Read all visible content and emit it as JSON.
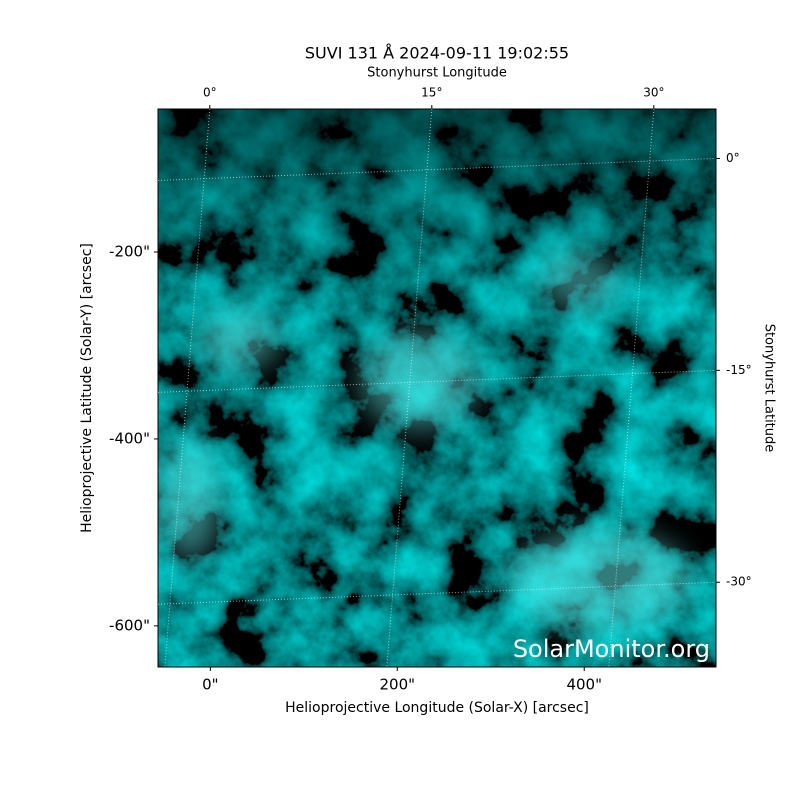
{
  "chart_data": {
    "type": "image",
    "title": "SUVI 131 Å 2024-09-11 19:02:55",
    "xlabel": "Helioprojective Longitude (Solar-X) [arcsec]",
    "ylabel": "Helioprojective Latitude (Solar-Y) [arcsec]",
    "x2label": "Stonyhurst Longitude",
    "y2label": "Stonyhurst Latitude",
    "annotation": "SolarMonitor.org",
    "xlim": [
      -56,
      541
    ],
    "ylim": [
      -644,
      -47
    ],
    "xticks": [
      {
        "value": 0,
        "label": "0\""
      },
      {
        "value": 200,
        "label": "200\""
      },
      {
        "value": 400,
        "label": "400\""
      }
    ],
    "yticks": [
      {
        "value": -200,
        "label": "-200\""
      },
      {
        "value": -400,
        "label": "-400\""
      },
      {
        "value": -600,
        "label": "-600\""
      }
    ],
    "x2lim": [
      -3.5,
      34.2
    ],
    "x2ticks": [
      {
        "value": 0,
        "label": "0°"
      },
      {
        "value": 15,
        "label": "15°"
      },
      {
        "value": 30,
        "label": "30°"
      }
    ],
    "y2lim": [
      -36,
      3.5
    ],
    "y2ticks": [
      {
        "value": 0,
        "label": "0°"
      },
      {
        "value": -15,
        "label": "-15°"
      },
      {
        "value": -30,
        "label": "-30°"
      }
    ],
    "grid": true,
    "color": "#00c8c8"
  }
}
